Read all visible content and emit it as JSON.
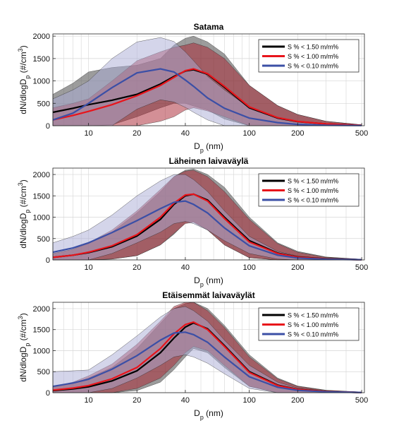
{
  "colors": {
    "s150": "#000000",
    "s100": "#e8141b",
    "s010": "#3b4fa6",
    "band_s150": "#3a3a3a",
    "band_s100": "#a8202e",
    "band_s010": "#a9acd6",
    "grid": "#d6d6d6",
    "axis": "#262626"
  },
  "chart_data": [
    {
      "type": "area",
      "title": "Satama",
      "xlabel": "D_p (nm)",
      "ylabel": "dN/dlogD_p (#/cm^3)",
      "xscale": "log",
      "xlim": [
        6,
        520
      ],
      "ylim": [
        0,
        2050
      ],
      "xticks": [
        10,
        20,
        40,
        100,
        200,
        500
      ],
      "yticks": [
        0,
        500,
        1000,
        1500,
        2000
      ],
      "grid": true,
      "legend_position": "top-right",
      "x": [
        6,
        8,
        10,
        14,
        20,
        28,
        34,
        40,
        45,
        55,
        70,
        100,
        150,
        200,
        300,
        500
      ],
      "series": [
        {
          "name": "S % < 1.50 m/m%",
          "color_key": "s150",
          "mean": [
            300,
            390,
            470,
            570,
            700,
            930,
            1100,
            1220,
            1250,
            1150,
            860,
            400,
            170,
            90,
            40,
            10
          ],
          "upper": [
            700,
            950,
            1200,
            1300,
            1350,
            1500,
            1800,
            1950,
            2000,
            1870,
            1600,
            900,
            450,
            250,
            100,
            20
          ],
          "lower": [
            0,
            0,
            0,
            20,
            200,
            400,
            500,
            500,
            440,
            350,
            150,
            0,
            0,
            0,
            0,
            0
          ]
        },
        {
          "name": "S % < 1.00 m/m%",
          "color_key": "s100",
          "mean": [
            130,
            230,
            320,
            470,
            670,
            900,
            1080,
            1230,
            1270,
            1160,
            880,
            420,
            180,
            95,
            40,
            10
          ],
          "upper": [
            400,
            500,
            600,
            1000,
            1450,
            1650,
            1750,
            1800,
            1850,
            1750,
            1500,
            900,
            450,
            250,
            100,
            20
          ],
          "lower": [
            0,
            0,
            0,
            0,
            0,
            100,
            200,
            350,
            400,
            330,
            200,
            0,
            0,
            0,
            0,
            0
          ]
        },
        {
          "name": "S % < 0.10 m/m%",
          "color_key": "s010",
          "mean": [
            130,
            280,
            500,
            850,
            1180,
            1270,
            1200,
            1020,
            880,
            620,
            390,
            170,
            70,
            30,
            10,
            5
          ],
          "upper": [
            600,
            800,
            1000,
            1500,
            1870,
            1970,
            1880,
            1650,
            1450,
            1100,
            800,
            400,
            160,
            80,
            30,
            10
          ],
          "lower": [
            0,
            0,
            0,
            0,
            370,
            580,
            530,
            410,
            300,
            130,
            0,
            0,
            0,
            0,
            0,
            0
          ]
        }
      ]
    },
    {
      "type": "area",
      "title": "Läheinen laivaväylä",
      "xlabel": "D_p (nm)",
      "ylabel": "dN/dlogD_p (#/cm^3)",
      "xscale": "log",
      "xlim": [
        6,
        520
      ],
      "ylim": [
        0,
        2150
      ],
      "xticks": [
        10,
        20,
        40,
        100,
        200,
        500
      ],
      "yticks": [
        0,
        500,
        1000,
        1500,
        2000
      ],
      "grid": true,
      "legend_position": "top-right",
      "x": [
        6,
        8,
        10,
        14,
        20,
        28,
        34,
        40,
        45,
        55,
        70,
        100,
        150,
        200,
        300,
        500
      ],
      "series": [
        {
          "name": "S % < 1.50 m/m%",
          "color_key": "s150",
          "mean": [
            60,
            110,
            170,
            310,
            560,
            950,
            1300,
            1500,
            1540,
            1400,
            1000,
            450,
            160,
            70,
            25,
            5
          ],
          "upper": [
            150,
            250,
            380,
            650,
            1100,
            1600,
            1950,
            2100,
            2130,
            2000,
            1700,
            1000,
            400,
            200,
            70,
            15
          ],
          "lower": [
            0,
            0,
            0,
            20,
            100,
            350,
            600,
            870,
            900,
            700,
            350,
            50,
            0,
            0,
            0,
            0
          ]
        },
        {
          "name": "S % < 1.00 m/m%",
          "color_key": "s100",
          "mean": [
            60,
            110,
            180,
            330,
            590,
            1000,
            1330,
            1520,
            1540,
            1380,
            970,
            420,
            150,
            65,
            20,
            5
          ],
          "upper": [
            150,
            250,
            400,
            700,
            1150,
            1650,
            1950,
            2080,
            2100,
            1950,
            1600,
            950,
            380,
            180,
            60,
            15
          ],
          "lower": [
            0,
            0,
            0,
            20,
            100,
            350,
            620,
            850,
            880,
            700,
            350,
            50,
            0,
            0,
            0,
            0
          ]
        },
        {
          "name": "S % < 0.10 m/m%",
          "color_key": "s010",
          "mean": [
            180,
            280,
            400,
            640,
            920,
            1200,
            1350,
            1380,
            1300,
            1100,
            750,
            330,
            110,
            45,
            15,
            5
          ],
          "upper": [
            400,
            550,
            700,
            1050,
            1500,
            1850,
            2000,
            2000,
            1880,
            1600,
            1150,
            550,
            200,
            90,
            30,
            10
          ],
          "lower": [
            0,
            0,
            0,
            150,
            400,
            650,
            850,
            900,
            850,
            700,
            450,
            150,
            20,
            0,
            0,
            0
          ]
        }
      ]
    },
    {
      "type": "area",
      "title": "Etäisemmät laivaväylät",
      "xlabel": "D_p (nm)",
      "ylabel": "dN/dlogD_p (#/cm^3)",
      "xscale": "log",
      "xlim": [
        6,
        520
      ],
      "ylim": [
        0,
        2150
      ],
      "xticks": [
        10,
        20,
        40,
        100,
        200,
        500
      ],
      "yticks": [
        0,
        500,
        1000,
        1500,
        2000
      ],
      "grid": true,
      "legend_position": "top-right",
      "x": [
        6,
        8,
        10,
        14,
        20,
        28,
        34,
        40,
        45,
        55,
        70,
        100,
        150,
        200,
        300,
        500
      ],
      "series": [
        {
          "name": "S % < 1.50 m/m%",
          "color_key": "s150",
          "mean": [
            50,
            90,
            140,
            280,
            520,
            950,
            1300,
            1560,
            1660,
            1520,
            1120,
            500,
            180,
            80,
            25,
            5
          ],
          "upper": [
            130,
            220,
            350,
            600,
            1050,
            1650,
            2000,
            2120,
            2150,
            2000,
            1600,
            900,
            350,
            160,
            60,
            15
          ],
          "lower": [
            0,
            0,
            0,
            0,
            50,
            250,
            550,
            850,
            1050,
            950,
            600,
            150,
            0,
            0,
            0,
            0
          ]
        },
        {
          "name": "S % < 1.00 m/m%",
          "color_key": "s100",
          "mean": [
            60,
            110,
            170,
            330,
            600,
            1050,
            1400,
            1620,
            1680,
            1500,
            1100,
            480,
            170,
            75,
            25,
            5
          ],
          "upper": [
            150,
            250,
            400,
            680,
            1150,
            1700,
            2050,
            2150,
            2150,
            1950,
            1550,
            850,
            330,
            150,
            50,
            15
          ],
          "lower": [
            0,
            0,
            0,
            0,
            100,
            350,
            650,
            950,
            1100,
            1000,
            650,
            150,
            0,
            0,
            0,
            0
          ]
        },
        {
          "name": "S % < 0.10 m/m%",
          "color_key": "s010",
          "mean": [
            150,
            230,
            320,
            560,
            880,
            1250,
            1420,
            1440,
            1380,
            1200,
            850,
            380,
            130,
            55,
            20,
            5
          ],
          "upper": [
            500,
            520,
            540,
            900,
            1350,
            1800,
            2000,
            2050,
            1950,
            1700,
            1250,
            650,
            250,
            110,
            40,
            10
          ],
          "lower": [
            0,
            0,
            0,
            100,
            350,
            650,
            850,
            900,
            850,
            700,
            450,
            100,
            0,
            0,
            0,
            0
          ]
        }
      ]
    }
  ]
}
